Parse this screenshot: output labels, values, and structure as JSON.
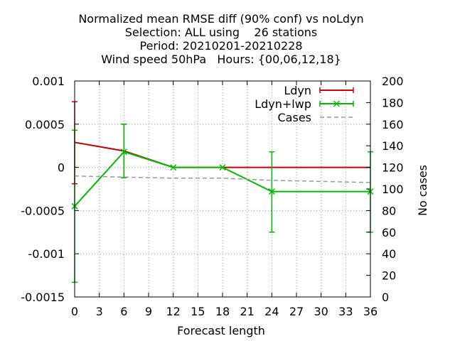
{
  "chart_data": {
    "type": "line",
    "title_lines": [
      "Normalized mean RMSE diff (90% conf) vs noLdyn",
      "Selection: ALL using    26 stations",
      "Period: 20210201-20210228",
      "Wind speed 50hPa   Hours: {00,06,12,18}"
    ],
    "xlabel": "Forecast length",
    "ylabel_right": "No cases",
    "xlim": [
      0,
      36
    ],
    "ylim": [
      -0.0015,
      0.001
    ],
    "y2lim": [
      0,
      200
    ],
    "x_ticks": [
      0,
      3,
      6,
      9,
      12,
      15,
      18,
      21,
      24,
      27,
      30,
      33,
      36
    ],
    "y_ticks": [
      0.001,
      0.0005,
      0,
      -0.0005,
      -0.001,
      -0.0015
    ],
    "y_tick_labels": [
      "0.001",
      "0.0005",
      "0",
      "-0.0005",
      "-0.001",
      "-0.0015"
    ],
    "y2_ticks": [
      0,
      20,
      40,
      60,
      80,
      100,
      120,
      140,
      160,
      180,
      200
    ],
    "grid": true,
    "legend_position": "top-right",
    "series": [
      {
        "name": "Ldyn",
        "color": "#cc0000",
        "x": [
          0,
          6,
          12,
          18,
          24,
          36
        ],
        "y": [
          0.00029,
          0.00019,
          0,
          0,
          0,
          0
        ],
        "err_low": [
          -0.00019,
          -0.00012,
          0,
          0,
          0,
          0
        ],
        "err_high": [
          0.00076,
          0.0005,
          0,
          0,
          0,
          0
        ]
      },
      {
        "name": "Ldyn+lwp",
        "color": "#00bb00",
        "x": [
          0,
          6,
          12,
          18,
          24,
          36
        ],
        "y": [
          -0.00045,
          0.00018,
          0,
          0,
          -0.00028,
          -0.00028
        ],
        "err_low": [
          -0.00133,
          -0.00012,
          0,
          0,
          -0.00075,
          -0.00075
        ],
        "err_high": [
          0.00043,
          0.0005,
          0,
          0,
          0.00018,
          0.00018
        ]
      },
      {
        "name": "Cases",
        "color": "#999999",
        "axis": "y2",
        "x": [
          0,
          6,
          12,
          18,
          24,
          36
        ],
        "y": [
          112,
          111,
          110,
          110,
          108,
          106
        ]
      }
    ]
  }
}
